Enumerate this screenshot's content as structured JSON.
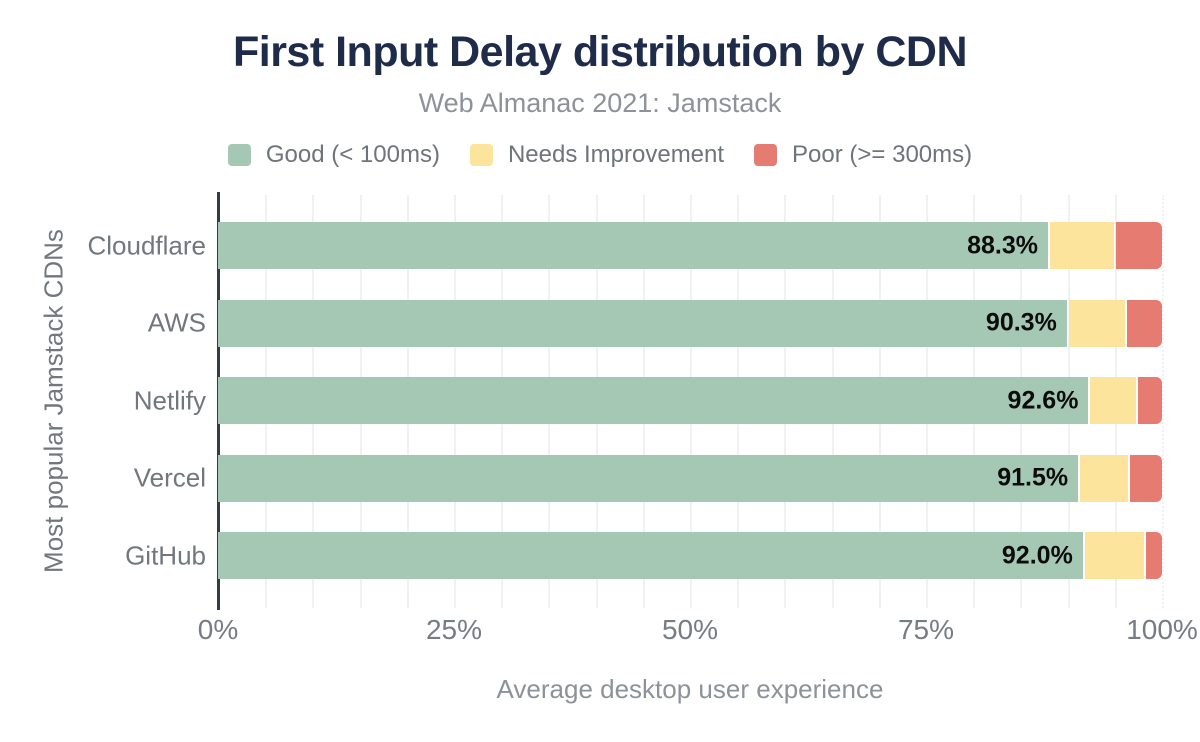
{
  "title": "First Input Delay distribution by CDN",
  "subtitle": "Web Almanac 2021: Jamstack",
  "legend": [
    {
      "label": "Good (< 100ms)",
      "color": "#a4c8b3"
    },
    {
      "label": "Needs Improvement",
      "color": "#fde49c"
    },
    {
      "label": "Poor (>= 300ms)",
      "color": "#e57b71"
    }
  ],
  "chart_data": {
    "type": "bar",
    "orientation": "horizontal",
    "stacked": true,
    "title": "First Input Delay distribution by CDN",
    "subtitle": "Web Almanac 2021: Jamstack",
    "categories": [
      "Cloudflare",
      "AWS",
      "Netlify",
      "Vercel",
      "GitHub"
    ],
    "series": [
      {
        "name": "Good (< 100ms)",
        "color": "#a4c8b3",
        "values": [
          88.3,
          90.3,
          92.6,
          91.5,
          92.0
        ]
      },
      {
        "name": "Needs Improvement",
        "color": "#fde49c",
        "values": [
          6.8,
          6.0,
          4.8,
          5.1,
          6.3
        ]
      },
      {
        "name": "Poor (>= 300ms)",
        "color": "#e57b71",
        "values": [
          4.9,
          3.7,
          2.6,
          3.4,
          1.7
        ]
      }
    ],
    "bar_labels": [
      "88.3%",
      "90.3%",
      "92.6%",
      "91.5%",
      "92.0%"
    ],
    "xlabel": "Average desktop user experience",
    "ylabel": "Most popular Jamstack CDNs",
    "x_ticks": [
      {
        "label": "0%",
        "value": 0
      },
      {
        "label": "25%",
        "value": 25
      },
      {
        "label": "50%",
        "value": 50
      },
      {
        "label": "75%",
        "value": 75
      },
      {
        "label": "100%",
        "value": 100
      }
    ],
    "xlim": [
      0,
      100
    ],
    "grid": "vertical minor gridlines every 5%, 100% line dotted",
    "legend_position": "top"
  },
  "style": {
    "title_color": "#1e2b49",
    "subtitle_color": "#8d929a",
    "tick_color": "#777c84",
    "category_color": "#72777e",
    "axis_line_color": "#333b47",
    "grid_color": "#f1f1f3",
    "value_label_color": "#0c0c0c",
    "background": "#ffffff"
  }
}
